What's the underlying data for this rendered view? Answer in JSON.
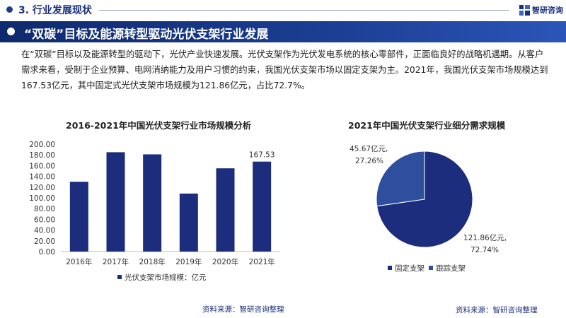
{
  "header": {
    "section_title": "3. 行业发展现状",
    "logo_text": "智研咨询",
    "banner_title": "“双碳”目标及能源转型驱动光伏支架行业发展"
  },
  "paragraph": "在“双碳”目标以及能源转型的驱动下，光伏产业快速发展。光伏支架作为光伏发电系统的核心零部件，正面临良好的战略机遇期。从客户需求来看，受制于企业预算、电网消纳能力及用户习惯的约束，我国光伏支架市场以固定支架为主。2021年，我国光伏支架市场规模达到167.53亿元，其中固定式光伏支架市场规模为121.86亿元，占比72.7%。",
  "colors": {
    "brand": "#1a2f7a",
    "bar": "#1b2d7c",
    "pie_fixed": "#1b2d7c",
    "pie_tracking": "#2e4e9e"
  },
  "chart_data": [
    {
      "type": "bar",
      "title": "2016-2021年中国光伏支架行业市场规模分析",
      "categories": [
        "2016年",
        "2017年",
        "2018年",
        "2019年",
        "2020年",
        "2021年"
      ],
      "series": [
        {
          "name": "光伏支架市场规模：亿元",
          "values": [
            130,
            185,
            181,
            108,
            155,
            167.53
          ]
        }
      ],
      "data_labels": {
        "5": "167.53"
      },
      "yticks": [
        "0.00",
        "20.00",
        "40.00",
        "60.00",
        "80.00",
        "100.00",
        "120.00",
        "140.00",
        "160.00",
        "180.00",
        "200.00"
      ],
      "ylim": [
        0,
        200
      ],
      "grid": false,
      "legend": "bottom",
      "source": "资料来源：智研咨询整理"
    },
    {
      "type": "pie",
      "title": "2021年中国光伏支架行业细分需求规模",
      "slices": [
        {
          "name": "固定支架",
          "value": 121.86,
          "label_value": "121.86亿元,",
          "label_pct": "72.74%"
        },
        {
          "name": "跟踪支架",
          "value": 45.67,
          "label_value": "45.67亿元,",
          "label_pct": "27.26%"
        }
      ],
      "legend": "bottom",
      "source": "资料来源：智研咨询整理"
    }
  ]
}
